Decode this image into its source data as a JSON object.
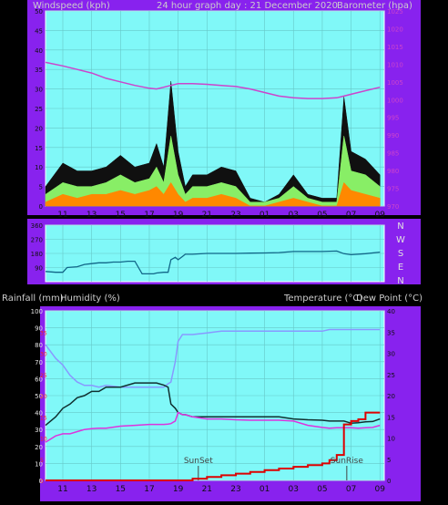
{
  "colors": {
    "page_bg": "#000000",
    "frame": "#8822ee",
    "plot_bg": "#80f8f8",
    "grid": "#66c8c8",
    "axis_text_dark": "#101010",
    "axis_text_light": "#e0e0e0",
    "barometer": "#cc44cc",
    "wind_gust": "#101010",
    "wind_avg": "#88ee66",
    "wind_low": "#ff8800",
    "direction": "#116688",
    "temperature": "#103030",
    "dewpoint": "#dd33dd",
    "humidity": "#8899ff",
    "rainfall": "#dd0000",
    "red_axis": "#ee2222",
    "event_line": "#444444"
  },
  "time_ticks": [
    "11",
    "13",
    "15",
    "17",
    "19",
    "21",
    "23",
    "01",
    "03",
    "05",
    "07",
    "09"
  ],
  "chart_data": [
    {
      "type": "line",
      "title": "24 hour graph day : 21 December 2020",
      "ylabel": "Windspeed (kph)",
      "y2label": "Barometer (hpa)",
      "ylim": [
        0,
        50
      ],
      "y_ticks": [
        "0",
        "5",
        "10",
        "15",
        "20",
        "25",
        "30",
        "35",
        "40",
        "45",
        "50"
      ],
      "y2lim": [
        970,
        1025
      ],
      "y2_ticks": [
        "970",
        "975",
        "980",
        "985",
        "990",
        "995",
        "1000",
        "1005",
        "1010",
        "1015",
        "1020",
        "1025"
      ],
      "x": [
        9.8,
        11,
        12,
        13,
        14,
        15,
        16,
        17,
        17.5,
        18,
        18.5,
        19,
        19.5,
        20,
        21,
        22,
        23,
        24,
        25,
        26,
        27,
        28,
        29,
        30,
        30.5,
        31,
        32,
        33
      ],
      "series": [
        {
          "name": "Wind gust",
          "values": [
            5,
            11,
            9,
            9,
            10,
            13,
            10,
            11,
            16,
            10,
            32,
            14,
            5,
            8,
            8,
            10,
            9,
            2,
            1,
            3,
            8,
            3,
            2,
            2,
            28,
            14,
            12,
            8
          ]
        },
        {
          "name": "Wind average",
          "values": [
            3,
            6,
            5,
            5,
            6,
            8,
            6,
            7,
            10,
            6,
            18,
            8,
            3,
            5,
            5,
            6,
            5,
            1,
            1,
            2,
            5,
            2,
            1,
            1,
            18,
            9,
            8,
            5
          ]
        },
        {
          "name": "Wind lowest",
          "values": [
            1,
            3,
            2,
            3,
            3,
            4,
            3,
            4,
            5,
            3,
            6,
            3,
            1,
            2,
            2,
            3,
            2,
            0,
            0,
            1,
            2,
            1,
            0,
            0,
            6,
            4,
            3,
            2
          ]
        },
        {
          "name": "Barometer",
          "axis": "right",
          "values": [
            1010.5,
            1009.5,
            1008.5,
            1007.5,
            1006,
            1005,
            1004,
            1003.2,
            1003,
            1003.5,
            1004,
            1004.5,
            1004.5,
            1004.5,
            1004.3,
            1004,
            1003.7,
            1003,
            1002,
            1001,
            1000.5,
            1000.3,
            1000.3,
            1000.5,
            1001,
            1001.5,
            1002.5,
            1003.5
          ]
        }
      ]
    },
    {
      "type": "line",
      "ylim": [
        0,
        360
      ],
      "y_ticks": [
        "90",
        "180",
        "270",
        "360"
      ],
      "y2_ticks": [
        "N",
        "W",
        "S",
        "E",
        "N"
      ],
      "x": [
        9.8,
        10.5,
        11,
        11.3,
        12,
        12.5,
        13,
        13.5,
        14,
        14.5,
        15,
        15.5,
        16,
        16.5,
        17,
        17.3,
        17.5,
        18,
        18.3,
        18.5,
        18.8,
        19,
        19.3,
        19.5,
        20,
        21,
        22,
        23,
        24,
        25,
        26,
        27,
        28,
        29,
        30,
        30.5,
        31,
        32,
        33
      ],
      "series": [
        {
          "name": "Wind direction",
          "values": [
            65,
            60,
            60,
            90,
            95,
            110,
            115,
            120,
            120,
            125,
            125,
            130,
            130,
            50,
            50,
            50,
            55,
            60,
            60,
            140,
            155,
            140,
            160,
            175,
            175,
            180,
            180,
            180,
            182,
            183,
            185,
            192,
            192,
            192,
            195,
            178,
            172,
            178,
            188
          ]
        }
      ]
    },
    {
      "type": "line",
      "ylabel": "Rainfall (mm)",
      "ylabel_secondary": "Humidity (%)",
      "ylim": [
        0,
        100
      ],
      "y_ticks": [
        "0",
        "10",
        "20",
        "30",
        "40",
        "50",
        "60",
        "70",
        "80",
        "90",
        "100"
      ],
      "y_ticks_secondary": [
        "0",
        "5",
        "10",
        "15",
        "20",
        "25",
        "30",
        "35"
      ],
      "y2label": "Temperature (°C)",
      "y2label_secondary": "Dew Point (°C)",
      "y2lim": [
        0,
        40
      ],
      "y2_ticks": [
        "0",
        "5",
        "10",
        "15",
        "20",
        "25",
        "30",
        "35",
        "40"
      ],
      "events": [
        {
          "label": "SunSet",
          "x": 20.4
        },
        {
          "label": "SunRise",
          "x": 30.7
        }
      ],
      "x": [
        9.8,
        10.5,
        11,
        11.5,
        12,
        12.5,
        13,
        13.5,
        14,
        15,
        16,
        17,
        17.5,
        18,
        18.3,
        18.5,
        18.8,
        19,
        19.3,
        19.5,
        20,
        21,
        22,
        23,
        24,
        25,
        26,
        27,
        28,
        29,
        29.5,
        30,
        30.5,
        31,
        31.5,
        32,
        32.5,
        33
      ],
      "series": [
        {
          "name": "Humidity",
          "values": [
            80,
            72,
            68,
            62,
            58,
            56,
            56,
            55,
            56,
            55,
            55,
            55,
            55,
            55,
            57,
            58,
            70,
            82,
            86,
            86,
            86,
            87,
            88,
            88,
            88,
            88,
            88,
            88,
            88,
            88,
            89,
            89,
            89,
            89,
            89,
            89,
            89,
            89
          ]
        },
        {
          "name": "Temperature",
          "axis": "right",
          "values": [
            13,
            15,
            17,
            18,
            19.5,
            20,
            21,
            21,
            22,
            22,
            23,
            23,
            23,
            22.5,
            22,
            18,
            17,
            16,
            15.5,
            15.5,
            15,
            15,
            15,
            15,
            15,
            15,
            15,
            14.5,
            14.3,
            14.2,
            14,
            14,
            14,
            13.5,
            13.6,
            13.8,
            13.9,
            14.5
          ]
        },
        {
          "name": "Dew Point",
          "axis": "right",
          "values": [
            9,
            10.5,
            11,
            11,
            11.5,
            12,
            12.2,
            12.3,
            12.3,
            12.8,
            13,
            13.2,
            13.2,
            13.2,
            13.3,
            13.4,
            14,
            16,
            15.5,
            15.5,
            15,
            14.5,
            14.5,
            14.3,
            14.2,
            14.2,
            14.2,
            14,
            13,
            12.5,
            12.3,
            12.4,
            12.4,
            12.4,
            12.3,
            12.4,
            12.5,
            13
          ]
        },
        {
          "name": "Rainfall",
          "values": [
            0,
            0,
            0,
            0,
            0,
            0,
            0,
            0,
            0,
            0,
            0,
            0,
            0,
            0,
            0,
            0,
            0,
            0,
            0,
            0,
            1,
            2,
            3,
            4,
            5,
            6,
            7,
            8,
            9,
            10,
            12,
            15,
            33,
            35,
            36,
            40,
            40,
            40
          ]
        }
      ]
    }
  ]
}
